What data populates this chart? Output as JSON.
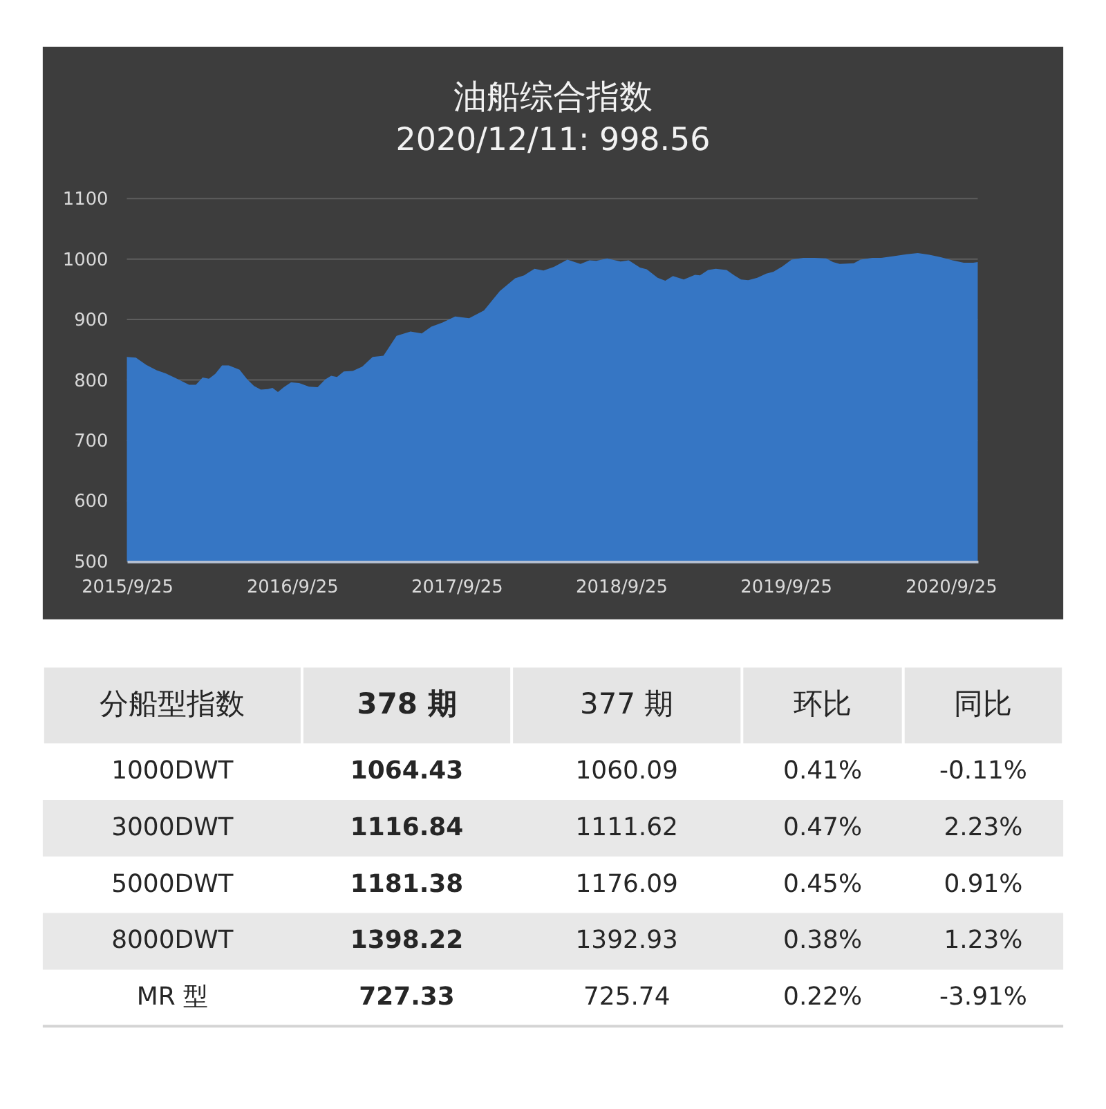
{
  "chart_data": [
    {
      "type": "area",
      "title": "油船综合指数",
      "subtitle": "2020/12/11: 998.56",
      "color": "#3676c4",
      "x": [
        "2015-09-25",
        "2015-10-15",
        "2015-11-07",
        "2015-11-30",
        "2015-12-20",
        "2016-01-17",
        "2016-02-10",
        "2016-02-25",
        "2016-03-11",
        "2016-03-25",
        "2016-04-08",
        "2016-04-23",
        "2016-05-08",
        "2016-06-01",
        "2016-06-18",
        "2016-07-03",
        "2016-07-18",
        "2016-08-03",
        "2016-08-13",
        "2016-08-25",
        "2016-09-07",
        "2016-09-23",
        "2016-10-11",
        "2016-11-02",
        "2016-11-21",
        "2016-12-08",
        "2016-12-21",
        "2017-01-03",
        "2017-01-18",
        "2017-02-07",
        "2017-02-28",
        "2017-03-23",
        "2017-04-16",
        "2017-05-15",
        "2017-06-15",
        "2017-07-10",
        "2017-07-31",
        "2017-08-25",
        "2017-09-22",
        "2017-10-23",
        "2017-11-25",
        "2017-12-30",
        "2018-02-02",
        "2018-02-22",
        "2018-03-17",
        "2018-04-06",
        "2018-04-29",
        "2018-05-29",
        "2018-06-27",
        "2018-07-17",
        "2018-08-01",
        "2018-08-25",
        "2018-09-24",
        "2018-10-12",
        "2018-11-06",
        "2018-11-21",
        "2018-12-15",
        "2019-01-01",
        "2019-01-18",
        "2019-02-11",
        "2019-03-08",
        "2019-03-19",
        "2019-04-06",
        "2019-04-23",
        "2019-05-17",
        "2019-06-03",
        "2019-06-18",
        "2019-07-04",
        "2019-07-24",
        "2019-08-13",
        "2019-08-29",
        "2019-09-18",
        "2019-10-08",
        "2019-11-03",
        "2019-11-28",
        "2019-12-24",
        "2020-01-08",
        "2020-01-23",
        "2020-02-23",
        "2020-03-09",
        "2020-04-04",
        "2020-04-24",
        "2020-05-24",
        "2020-06-19",
        "2020-07-14",
        "2020-08-09",
        "2020-09-03",
        "2020-09-29",
        "2020-10-24",
        "2020-11-14",
        "2020-11-24"
      ],
      "values": [
        838,
        837,
        825,
        816,
        811,
        801,
        792,
        792,
        804,
        802,
        810,
        824,
        824,
        817,
        801,
        790,
        784,
        785,
        787,
        780,
        788,
        796,
        795,
        789,
        788,
        801,
        807,
        805,
        814,
        815,
        822,
        838,
        840,
        873,
        880,
        877,
        888,
        895,
        905,
        902,
        915,
        947,
        968,
        973,
        984,
        981,
        987,
        999,
        992,
        998,
        997,
        1001,
        996,
        998,
        986,
        983,
        969,
        964,
        972,
        966,
        974,
        973,
        982,
        984,
        982,
        973,
        966,
        965,
        969,
        976,
        979,
        988,
        999,
        1002,
        1002,
        1001,
        995,
        992,
        993,
        999,
        1002,
        1002,
        1005,
        1008,
        1010,
        1007,
        1003,
        998,
        994,
        994,
        995
      ],
      "xlim": [
        "2015-09-25",
        "2020-11-24"
      ],
      "xticks": [
        {
          "value": "2015-09-25",
          "label": "2015/9/25"
        },
        {
          "value": "2016-09-25",
          "label": "2016/9/25"
        },
        {
          "value": "2017-09-25",
          "label": "2017/9/25"
        },
        {
          "value": "2018-09-25",
          "label": "2018/9/25"
        },
        {
          "value": "2019-09-25",
          "label": "2019/9/25"
        },
        {
          "value": "2020-09-25",
          "label": "2020/9/25"
        }
      ],
      "ylim": [
        500,
        1100
      ],
      "yticks": [
        500,
        600,
        700,
        800,
        900,
        1000,
        1100
      ],
      "grid": "y"
    },
    {
      "type": "other",
      "categories": [
        "分船型指数",
        "378 期",
        "377 期",
        "环比",
        "同比"
      ],
      "y_categories": [
        "1000DWT",
        "3000DWT",
        "5000DWT",
        "8000DWT",
        "MR 型"
      ],
      "cell_labels": [
        [
          "1064.43",
          "1060.09",
          "0.41%",
          "-0.11%"
        ],
        [
          "1116.84",
          "1111.62",
          "0.47%",
          "2.23%"
        ],
        [
          "1181.38",
          "1176.09",
          "0.45%",
          "0.91%"
        ],
        [
          "1398.22",
          "1392.93",
          "0.38%",
          "1.23%"
        ],
        [
          "727.33",
          "725.74",
          "0.22%",
          "-3.91%"
        ]
      ]
    }
  ]
}
